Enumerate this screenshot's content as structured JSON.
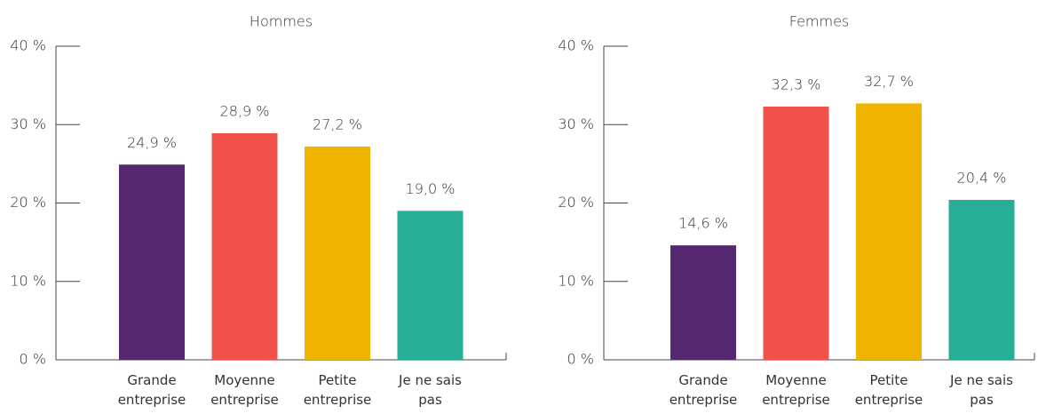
{
  "chart_data": [
    {
      "type": "bar",
      "title": "Hommes",
      "categories": [
        "Grande entreprise",
        "Moyenne entreprise",
        "Petite entreprise",
        "Je ne sais pas"
      ],
      "values": [
        24.9,
        28.9,
        27.2,
        19.0
      ],
      "value_labels": [
        "24,9 %",
        "28,9 %",
        "27,2 %",
        "19,0 %"
      ],
      "colors": [
        "#55286f",
        "#f0514b",
        "#f0b400",
        "#27ae96"
      ],
      "ylim": [
        0,
        40
      ],
      "yticks": [
        {
          "value": 0,
          "label": "0 %"
        },
        {
          "value": 10,
          "label": "10 %"
        },
        {
          "value": 20,
          "label": "20 %"
        },
        {
          "value": 30,
          "label": "30 %"
        },
        {
          "value": 40,
          "label": "40 %"
        }
      ]
    },
    {
      "type": "bar",
      "title": "Femmes",
      "categories": [
        "Grande entreprise",
        "Moyenne entreprise",
        "Petite entreprise",
        "Je ne sais pas"
      ],
      "values": [
        14.6,
        32.3,
        32.7,
        20.4
      ],
      "value_labels": [
        "14,6 %",
        "32,3 %",
        "32,7 %",
        "20,4 %"
      ],
      "colors": [
        "#55286f",
        "#f0514b",
        "#f0b400",
        "#27ae96"
      ],
      "ylim": [
        0,
        40
      ],
      "yticks": [
        {
          "value": 0,
          "label": "0 %"
        },
        {
          "value": 10,
          "label": "10 %"
        },
        {
          "value": 20,
          "label": "20 %"
        },
        {
          "value": 30,
          "label": "30 %"
        },
        {
          "value": 40,
          "label": "40 %"
        }
      ]
    }
  ]
}
